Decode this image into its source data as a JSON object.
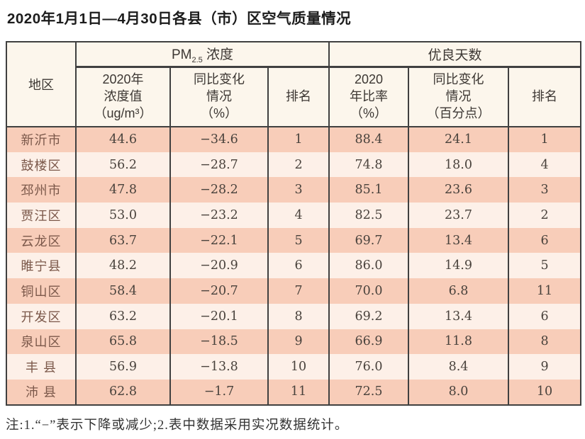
{
  "title": "2020年1月1日—4月30日各县（市）区空气质量情况",
  "table": {
    "region_header": "地区",
    "groups": {
      "pm": {
        "prefix": "PM",
        "sub": "2.5",
        "suffix": " 浓度"
      },
      "good_days": {
        "label": "优良天数"
      }
    },
    "subheaders": [
      "2020年\n浓度值\n（ug/m³）",
      "同比变化\n情况\n（%）",
      "排名",
      "2020\n年比率\n（%）",
      "同比变化\n情况\n（百分点）",
      "排名"
    ],
    "rows": [
      [
        "新沂市",
        "44.6",
        "−34.6",
        "1",
        "88.4",
        "24.1",
        "1"
      ],
      [
        "鼓楼区",
        "56.2",
        "−28.7",
        "2",
        "74.8",
        "18.0",
        "4"
      ],
      [
        "邳州市",
        "47.8",
        "−28.2",
        "3",
        "85.1",
        "23.6",
        "3"
      ],
      [
        "贾汪区",
        "53.0",
        "−23.2",
        "4",
        "82.5",
        "23.7",
        "2"
      ],
      [
        "云龙区",
        "63.7",
        "−22.1",
        "5",
        "69.7",
        "13.4",
        "6"
      ],
      [
        "睢宁县",
        "48.2",
        "−20.9",
        "6",
        "86.0",
        "14.9",
        "5"
      ],
      [
        "铜山区",
        "58.4",
        "−20.7",
        "7",
        "70.0",
        "6.8",
        "11"
      ],
      [
        "开发区",
        "63.2",
        "−20.1",
        "8",
        "69.2",
        "13.4",
        "6"
      ],
      [
        "泉山区",
        "65.8",
        "−18.5",
        "9",
        "66.9",
        "11.8",
        "8"
      ],
      [
        "丰 县",
        "56.9",
        "−13.8",
        "10",
        "76.0",
        "8.4",
        "9"
      ],
      [
        "沛 县",
        "62.8",
        "−1.7",
        "11",
        "72.5",
        "8.0",
        "10"
      ]
    ]
  },
  "note": "注:1.“−”表示下降或减少;2.表中数据采用实况数据统计。",
  "colors": {
    "row_salmon": "#f8cdb9",
    "row_light": "#fdf0e8",
    "header_bg": "#fcf6ec",
    "border": "#404040",
    "region_text": "#7b584a",
    "number_text": "#49423c",
    "header_text": "#3c3733",
    "title_text": "#1c1c1c",
    "note_text": "#333333"
  }
}
